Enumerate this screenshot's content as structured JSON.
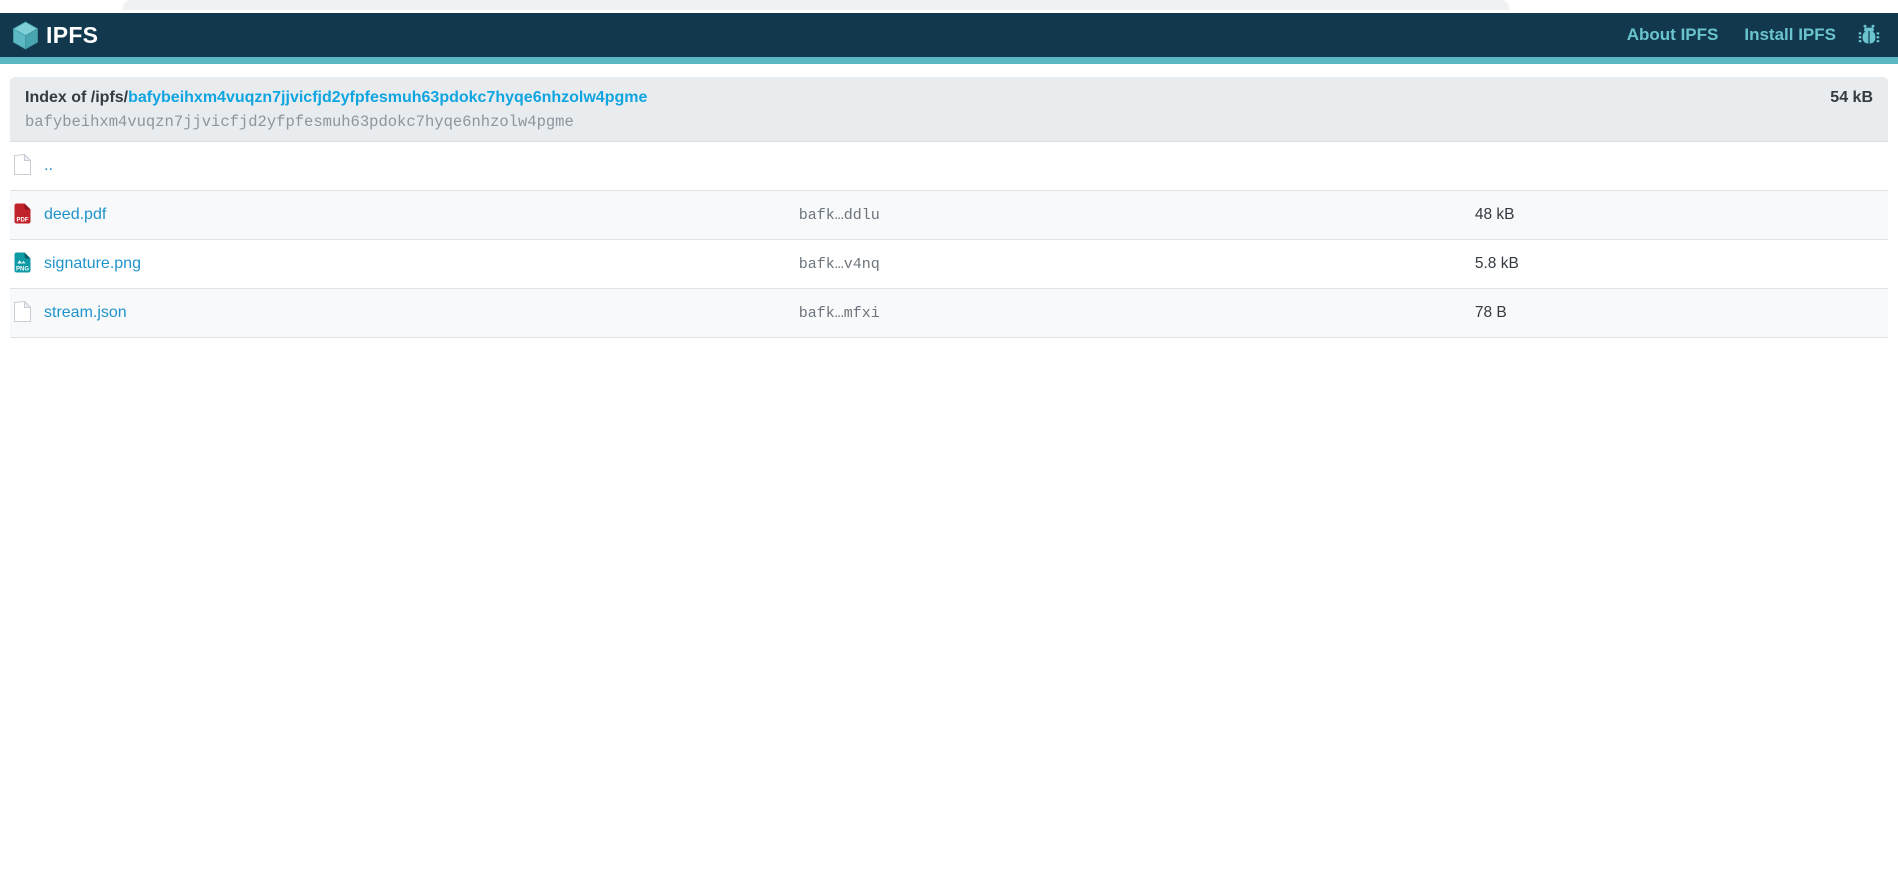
{
  "navbar": {
    "brand": "IPFS",
    "logo_icon": "ipfs-cube-icon",
    "links": [
      {
        "label": "About IPFS"
      },
      {
        "label": "Install IPFS"
      }
    ],
    "bug_icon": "bug-report-icon"
  },
  "header": {
    "index_prefix": "Index of /ipfs/",
    "cid": "bafybeihxm4vuqzn7jjvicfjd2yfpfesmuh63pdokc7hyqe6nhzolw4pgme",
    "cid_full": "bafybeihxm4vuqzn7jjvicfjd2yfpfesmuh63pdokc7hyqe6nhzolw4pgme",
    "total_size": "54 kB"
  },
  "listing": {
    "rows": [
      {
        "name": "..",
        "icon": "generic",
        "icon_name": "file-icon",
        "hash": "",
        "size": ""
      },
      {
        "name": "deed.pdf",
        "icon": "pdf",
        "icon_name": "pdf-file-icon",
        "hash": "bafk…ddlu",
        "size": "48 kB"
      },
      {
        "name": "signature.png",
        "icon": "png",
        "icon_name": "png-file-icon",
        "hash": "bafk…v4nq",
        "size": "5.8 kB"
      },
      {
        "name": "stream.json",
        "icon": "generic",
        "icon_name": "file-icon",
        "hash": "bafk…mfxi",
        "size": "78 B"
      }
    ]
  },
  "colors": {
    "navbar_bg": "#12384e",
    "accent_teal": "#5ab8c2",
    "nav_link": "#69c4cd",
    "cid_link": "#0fa5e0",
    "file_link": "#1f93cb",
    "stripe_bg": "#f8f9fa",
    "header_bg": "#e9ecef",
    "pdf_icon_red": "#c0222c",
    "png_icon_teal": "#0d9aa4"
  }
}
